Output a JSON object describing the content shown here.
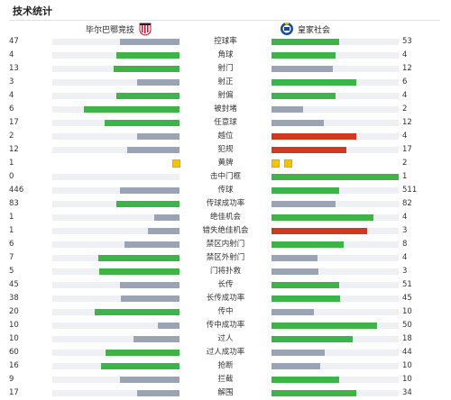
{
  "header": {
    "title": "技术统计"
  },
  "teams": {
    "home": "毕尔巴鄂竞技",
    "away": "皇家社会"
  },
  "colors": {
    "win": "#3db447",
    "lose": "#9aa4b4",
    "warn": "#d0391e",
    "track": "#eef0f3",
    "card": "#f5c400"
  },
  "stats": [
    {
      "label": "控球率",
      "home": "47",
      "away": "53",
      "hp": 0.47,
      "ap": 0.53,
      "hc": "lose",
      "ac": "win"
    },
    {
      "label": "角球",
      "home": "4",
      "away": "4",
      "hp": 0.5,
      "ap": 0.5,
      "hc": "win",
      "ac": "win"
    },
    {
      "label": "射门",
      "home": "13",
      "away": "12",
      "hp": 0.52,
      "ap": 0.48,
      "hc": "win",
      "ac": "lose"
    },
    {
      "label": "射正",
      "home": "3",
      "away": "6",
      "hp": 0.33,
      "ap": 0.67,
      "hc": "lose",
      "ac": "win"
    },
    {
      "label": "射偏",
      "home": "4",
      "away": "4",
      "hp": 0.5,
      "ap": 0.5,
      "hc": "win",
      "ac": "win"
    },
    {
      "label": "被封堵",
      "home": "6",
      "away": "2",
      "hp": 0.75,
      "ap": 0.25,
      "hc": "win",
      "ac": "lose"
    },
    {
      "label": "任意球",
      "home": "17",
      "away": "12",
      "hp": 0.59,
      "ap": 0.41,
      "hc": "win",
      "ac": "lose"
    },
    {
      "label": "越位",
      "home": "2",
      "away": "4",
      "hp": 0.33,
      "ap": 0.67,
      "hc": "lose",
      "ac": "warn"
    },
    {
      "label": "犯规",
      "home": "12",
      "away": "17",
      "hp": 0.41,
      "ap": 0.59,
      "hc": "lose",
      "ac": "warn"
    },
    {
      "label": "黄牌",
      "home": "1",
      "away": "2",
      "cards": true
    },
    {
      "label": "击中门框",
      "home": "0",
      "away": "1",
      "hp": 0,
      "ap": 1,
      "hc": "lose",
      "ac": "win"
    },
    {
      "label": "传球",
      "home": "446",
      "away": "511",
      "hp": 0.47,
      "ap": 0.53,
      "hc": "lose",
      "ac": "win"
    },
    {
      "label": "传球成功率",
      "home": "83",
      "away": "82",
      "hp": 0.5,
      "ap": 0.5,
      "hc": "win",
      "ac": "lose"
    },
    {
      "label": "绝佳机会",
      "home": "1",
      "away": "4",
      "hp": 0.2,
      "ap": 0.8,
      "hc": "lose",
      "ac": "win"
    },
    {
      "label": "错失绝佳机会",
      "home": "1",
      "away": "3",
      "hp": 0.25,
      "ap": 0.75,
      "hc": "lose",
      "ac": "warn"
    },
    {
      "label": "禁区内射门",
      "home": "6",
      "away": "8",
      "hp": 0.43,
      "ap": 0.57,
      "hc": "lose",
      "ac": "win"
    },
    {
      "label": "禁区外射门",
      "home": "7",
      "away": "4",
      "hp": 0.64,
      "ap": 0.36,
      "hc": "win",
      "ac": "lose"
    },
    {
      "label": "门将扑救",
      "home": "5",
      "away": "3",
      "hp": 0.63,
      "ap": 0.37,
      "hc": "win",
      "ac": "lose"
    },
    {
      "label": "长传",
      "home": "45",
      "away": "51",
      "hp": 0.47,
      "ap": 0.53,
      "hc": "lose",
      "ac": "win"
    },
    {
      "label": "长传成功率",
      "home": "38",
      "away": "45",
      "hp": 0.46,
      "ap": 0.54,
      "hc": "lose",
      "ac": "win"
    },
    {
      "label": "传中",
      "home": "20",
      "away": "10",
      "hp": 0.67,
      "ap": 0.33,
      "hc": "win",
      "ac": "lose"
    },
    {
      "label": "传中成功率",
      "home": "10",
      "away": "50",
      "hp": 0.17,
      "ap": 0.83,
      "hc": "lose",
      "ac": "win"
    },
    {
      "label": "过人",
      "home": "10",
      "away": "18",
      "hp": 0.36,
      "ap": 0.64,
      "hc": "lose",
      "ac": "win"
    },
    {
      "label": "过人成功率",
      "home": "60",
      "away": "44",
      "hp": 0.58,
      "ap": 0.42,
      "hc": "win",
      "ac": "lose"
    },
    {
      "label": "抢断",
      "home": "16",
      "away": "10",
      "hp": 0.62,
      "ap": 0.38,
      "hc": "win",
      "ac": "lose"
    },
    {
      "label": "拦截",
      "home": "9",
      "away": "10",
      "hp": 0.47,
      "ap": 0.53,
      "hc": "lose",
      "ac": "win"
    },
    {
      "label": "解围",
      "home": "17",
      "away": "34",
      "hp": 0.33,
      "ap": 0.67,
      "hc": "lose",
      "ac": "win"
    }
  ]
}
